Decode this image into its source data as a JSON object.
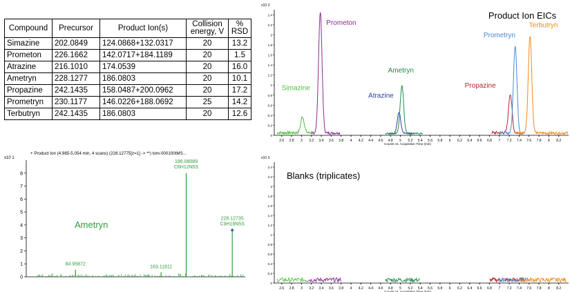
{
  "table": {
    "headers": [
      "Compound",
      "Precursor",
      "Product Ion(s)",
      "Collision energy, V",
      "% RSD"
    ],
    "rows": [
      [
        "Simazine",
        "202.0849",
        "124.0868+132.0317",
        "20",
        "13.2"
      ],
      [
        "Prometon",
        "226.1662",
        "142.0717+184.1189",
        "20",
        "1.5"
      ],
      [
        "Atrazine",
        "216.1010",
        "174.0539",
        "20",
        "16.0"
      ],
      [
        "Ametryn",
        "228.1277",
        "186.0803",
        "20",
        "10.1"
      ],
      [
        "Propazine",
        "242.1435",
        "158.0487+200.0962",
        "20",
        "17.2"
      ],
      [
        "Prometryn",
        "230.1177",
        "146.0226+188.0692",
        "25",
        "14.2"
      ],
      [
        "Terbutryn",
        "242.1435",
        "186.0803",
        "20",
        "12.6"
      ]
    ]
  },
  "colors": {
    "simazine": "#4fbf3f",
    "prometon": "#8b2a8e",
    "atrazine": "#2d3f9e",
    "ametryn": "#1d8a4a",
    "propazine": "#b3262d",
    "prometryn": "#4a86cf",
    "terbutryn": "#f08a16",
    "spectrum": "#2e9a3a",
    "axis": "#000000"
  },
  "chart_data": [
    {
      "type": "line",
      "title": "Product Ion    EICs",
      "xlabel": "Counts vs. Acquisition Time (min)",
      "y_exponent_label": "x10 3",
      "xlim": [
        2.45,
        8.4
      ],
      "ylim": [
        0,
        2.5
      ],
      "x_ticks": [
        "2.6",
        "2.8",
        "3",
        "3.2",
        "3.4",
        "3.6",
        "3.8",
        "4",
        "4.2",
        "4.4",
        "4.6",
        "4.8",
        "5",
        "5.2",
        "5.4",
        "5.6",
        "5.8",
        "6",
        "6.2",
        "6.4",
        "6.6",
        "6.8",
        "7",
        "7.2",
        "7.4",
        "7.6",
        "7.8",
        "8",
        "8.2"
      ],
      "y_ticks": [
        "0",
        "0.2",
        "0.4",
        "0.6",
        "0.8",
        "1",
        "1.2",
        "1.4",
        "1.6",
        "1.8",
        "2",
        "2.2",
        "2.4"
      ],
      "series": [
        {
          "name": "Simazine",
          "color_key": "simazine",
          "peak_x": 3.02,
          "peak_y": 0.32,
          "label_x": 2.6,
          "label_y": 0.9
        },
        {
          "name": "Prometon",
          "color_key": "prometon",
          "peak_x": 3.38,
          "peak_y": 2.42,
          "label_x": 3.5,
          "label_y": 2.2
        },
        {
          "name": "Atrazine",
          "color_key": "atrazine",
          "peak_x": 4.97,
          "peak_y": 0.42,
          "label_x": 4.35,
          "label_y": 0.75
        },
        {
          "name": "Ametryn",
          "color_key": "ametryn",
          "peak_x": 5.03,
          "peak_y": 0.96,
          "label_x": 4.75,
          "label_y": 1.25
        },
        {
          "name": "Propazine",
          "color_key": "propazine",
          "peak_x": 7.22,
          "peak_y": 0.78,
          "label_x": 6.3,
          "label_y": 0.95
        },
        {
          "name": "Prometryn",
          "color_key": "prometryn",
          "peak_x": 7.32,
          "peak_y": 1.75,
          "label_x": 6.68,
          "label_y": 1.95
        },
        {
          "name": "Terbutryn",
          "color_key": "terbutryn",
          "peak_x": 7.62,
          "peak_y": 1.95,
          "label_x": 7.6,
          "label_y": 2.15
        }
      ]
    },
    {
      "type": "bar",
      "title": "+ Product Ion (4.985-5.054 min, 4 scans) (228.12775[z=1] -> **) tom-000100tMS...",
      "annotation": "Ametryn",
      "y_exponent_label": "x10 1",
      "xlim": [
        40,
        240
      ],
      "ylim": [
        0,
        9
      ],
      "y_ticks": [
        "0",
        "1",
        "2",
        "3",
        "4",
        "5",
        "6",
        "7",
        "8"
      ],
      "peaks": [
        {
          "x": 84.95872,
          "y": 0.55,
          "label": "84.95872",
          "formula": ""
        },
        {
          "x": 163.11811,
          "y": 0.35,
          "label": "163.11811",
          "formula": ""
        },
        {
          "x": 186.08089,
          "y": 8.0,
          "label": "186.08089",
          "formula": "C6H12N5S"
        },
        {
          "x": 228.12735,
          "y": 3.6,
          "label": "228.12735",
          "formula": "C9H18N5S"
        }
      ]
    },
    {
      "type": "line",
      "title": "Blanks (triplicates)",
      "xlabel": "Counts vs. Acquisition Time (min)",
      "y_exponent_label": "x10 3",
      "xlim": [
        2.45,
        8.4
      ],
      "ylim": [
        0,
        2.5
      ],
      "x_ticks": [
        "2.6",
        "2.8",
        "3",
        "3.2",
        "3.4",
        "3.6",
        "3.8",
        "4",
        "4.2",
        "4.4",
        "4.6",
        "4.8",
        "5",
        "5.2",
        "5.4",
        "5.6",
        "5.8",
        "6",
        "6.2",
        "6.4",
        "6.6",
        "6.8",
        "7",
        "7.2",
        "7.4",
        "7.6",
        "7.8",
        "8",
        "8.2"
      ],
      "y_ticks": [
        "0",
        "0.2",
        "0.4",
        "0.6",
        "0.8",
        "1",
        "1.2",
        "1.4",
        "1.6",
        "1.8",
        "2",
        "2.2",
        "2.4"
      ],
      "noise_windows": [
        {
          "color_key": "simazine",
          "x0": 2.5,
          "x1": 3.1
        },
        {
          "color_key": "prometon",
          "x0": 3.1,
          "x1": 3.8
        },
        {
          "color_key": "ametryn",
          "x0": 4.7,
          "x1": 5.4
        },
        {
          "color_key": "propazine",
          "x0": 6.8,
          "x1": 7.5
        },
        {
          "color_key": "prometryn",
          "x0": 7.0,
          "x1": 7.6
        },
        {
          "color_key": "terbutryn",
          "x0": 7.4,
          "x1": 8.35
        }
      ]
    }
  ]
}
